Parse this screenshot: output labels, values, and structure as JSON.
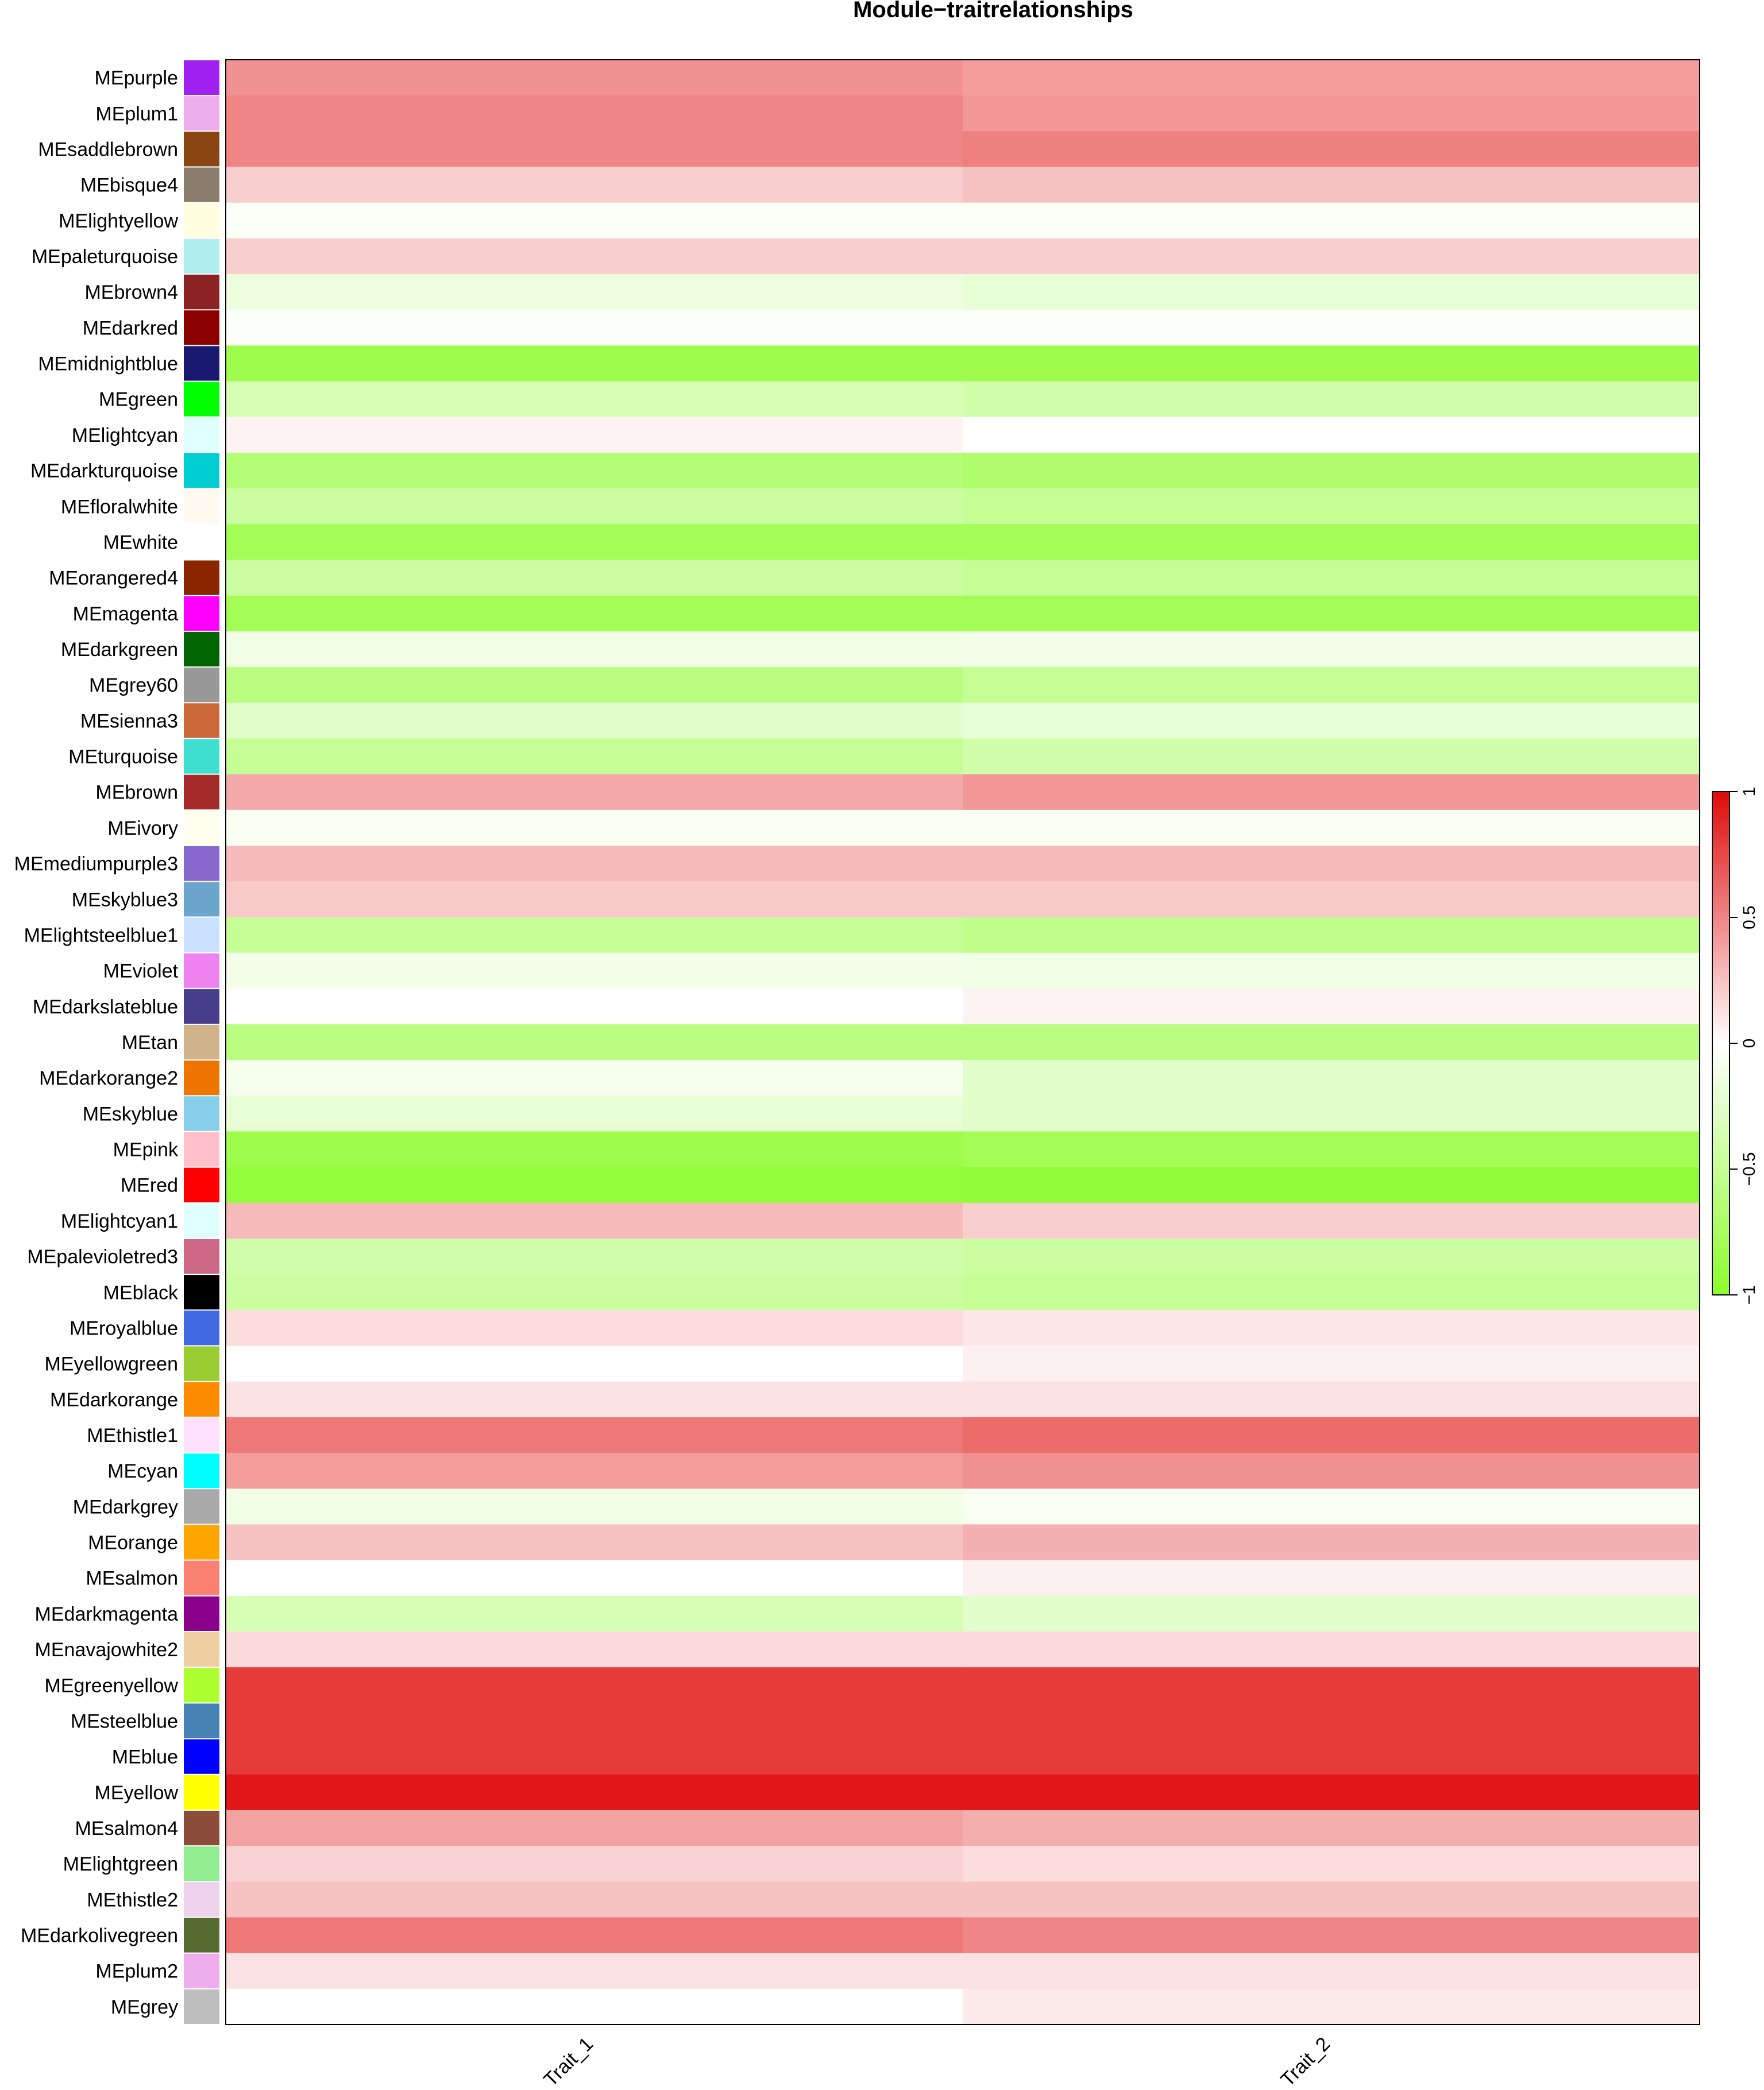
{
  "chart_data": {
    "type": "heatmap",
    "title": "Module−traitrelationships",
    "columns": [
      "Trait_1",
      "Trait_2"
    ],
    "rows": [
      {
        "label": "MEpurple",
        "color": "#a020f0",
        "values": [
          0.45,
          0.4
        ]
      },
      {
        "label": "MEplum1",
        "color": "#eeaeee",
        "values": [
          0.5,
          0.42
        ]
      },
      {
        "label": "MEsaddlebrown",
        "color": "#8b4513",
        "values": [
          0.5,
          0.52
        ]
      },
      {
        "label": "MEbisque4",
        "color": "#8b7d6b",
        "values": [
          0.2,
          0.25
        ]
      },
      {
        "label": "MElightyellow",
        "color": "#ffffe0",
        "values": [
          -0.04,
          -0.04
        ]
      },
      {
        "label": "MEpaleturquoise",
        "color": "#afeeee",
        "values": [
          0.2,
          0.2
        ]
      },
      {
        "label": "MEbrown4",
        "color": "#8b2323",
        "values": [
          -0.15,
          -0.2
        ]
      },
      {
        "label": "MEdarkred",
        "color": "#8b0000",
        "values": [
          -0.03,
          -0.03
        ]
      },
      {
        "label": "MEmidnightblue",
        "color": "#191970",
        "values": [
          -0.85,
          -0.85
        ]
      },
      {
        "label": "MEgreen",
        "color": "#00ff00",
        "values": [
          -0.35,
          -0.4
        ]
      },
      {
        "label": "MElightcyan",
        "color": "#e0ffff",
        "values": [
          0.05,
          0.0
        ]
      },
      {
        "label": "MEdarkturquoise",
        "color": "#00ced1",
        "values": [
          -0.65,
          -0.7
        ]
      },
      {
        "label": "MEfloralwhite",
        "color": "#fffaf0",
        "values": [
          -0.45,
          -0.5
        ]
      },
      {
        "label": "MEwhite",
        "color": "#ffffff",
        "values": [
          -0.8,
          -0.8
        ]
      },
      {
        "label": "MEorangered4",
        "color": "#8b2500",
        "values": [
          -0.45,
          -0.5
        ]
      },
      {
        "label": "MEmagenta",
        "color": "#ff00ff",
        "values": [
          -0.8,
          -0.8
        ]
      },
      {
        "label": "MEdarkgreen",
        "color": "#006400",
        "values": [
          -0.12,
          -0.1
        ]
      },
      {
        "label": "MEgrey60",
        "color": "#999999",
        "values": [
          -0.6,
          -0.5
        ]
      },
      {
        "label": "MEsienna3",
        "color": "#cd6839",
        "values": [
          -0.25,
          -0.2
        ]
      },
      {
        "label": "MEturquoise",
        "color": "#40e0d0",
        "values": [
          -0.5,
          -0.4
        ]
      },
      {
        "label": "MEbrown",
        "color": "#a52a2a",
        "values": [
          0.35,
          0.42
        ]
      },
      {
        "label": "MEivory",
        "color": "#fffff0",
        "values": [
          -0.06,
          -0.06
        ]
      },
      {
        "label": "MEmediumpurple3",
        "color": "#8968cd",
        "values": [
          0.28,
          0.28
        ]
      },
      {
        "label": "MEskyblue3",
        "color": "#6ca6cd",
        "values": [
          0.22,
          0.22
        ]
      },
      {
        "label": "MElightsteelblue1",
        "color": "#cae1ff",
        "values": [
          -0.5,
          -0.55
        ]
      },
      {
        "label": "MEviolet",
        "color": "#ee82ee",
        "values": [
          -0.1,
          -0.12
        ]
      },
      {
        "label": "MEdarkslateblue",
        "color": "#483d8b",
        "values": [
          0.0,
          0.05
        ]
      },
      {
        "label": "MEtan",
        "color": "#d2b48c",
        "values": [
          -0.6,
          -0.6
        ]
      },
      {
        "label": "MEdarkorange2",
        "color": "#ee7600",
        "values": [
          -0.08,
          -0.25
        ]
      },
      {
        "label": "MEskyblue",
        "color": "#87ceeb",
        "values": [
          -0.2,
          -0.25
        ]
      },
      {
        "label": "MEpink",
        "color": "#ffc0cb",
        "values": [
          -0.85,
          -0.8
        ]
      },
      {
        "label": "MEred",
        "color": "#ff0000",
        "values": [
          -0.92,
          -0.95
        ]
      },
      {
        "label": "MElightcyan1",
        "color": "#e0ffff",
        "values": [
          0.28,
          0.2
        ]
      },
      {
        "label": "MEpalevioletred3",
        "color": "#cd6889",
        "values": [
          -0.4,
          -0.45
        ]
      },
      {
        "label": "MEblack",
        "color": "#000000",
        "values": [
          -0.45,
          -0.5
        ]
      },
      {
        "label": "MEroyalblue",
        "color": "#4169e1",
        "values": [
          0.14,
          0.1
        ]
      },
      {
        "label": "MEyellowgreen",
        "color": "#9acd32",
        "values": [
          0.0,
          0.06
        ]
      },
      {
        "label": "MEdarkorange",
        "color": "#ff8c00",
        "values": [
          0.12,
          0.12
        ]
      },
      {
        "label": "MEthistle1",
        "color": "#ffe1ff",
        "values": [
          0.55,
          0.6
        ]
      },
      {
        "label": "MEcyan",
        "color": "#00ffff",
        "values": [
          0.4,
          0.45
        ]
      },
      {
        "label": "MEdarkgrey",
        "color": "#a9a9a9",
        "values": [
          -0.12,
          -0.06
        ]
      },
      {
        "label": "MEorange",
        "color": "#ffa500",
        "values": [
          0.25,
          0.32
        ]
      },
      {
        "label": "MEsalmon",
        "color": "#fa8072",
        "values": [
          0.0,
          0.06
        ]
      },
      {
        "label": "MEdarkmagenta",
        "color": "#8b008b",
        "values": [
          -0.35,
          -0.25
        ]
      },
      {
        "label": "MEnavajowhite2",
        "color": "#eecfa1",
        "values": [
          0.15,
          0.15
        ]
      },
      {
        "label": "MEgreenyellow",
        "color": "#adff2f",
        "values": [
          0.8,
          0.8
        ]
      },
      {
        "label": "MEsteelblue",
        "color": "#4682b4",
        "values": [
          0.8,
          0.8
        ]
      },
      {
        "label": "MEblue",
        "color": "#0000ff",
        "values": [
          0.8,
          0.8
        ]
      },
      {
        "label": "MEyellow",
        "color": "#ffff00",
        "values": [
          0.95,
          0.95
        ]
      },
      {
        "label": "MEsalmon4",
        "color": "#8b4c39",
        "values": [
          0.38,
          0.33
        ]
      },
      {
        "label": "MElightgreen",
        "color": "#90ee90",
        "values": [
          0.18,
          0.14
        ]
      },
      {
        "label": "MEthistle2",
        "color": "#eed2ee",
        "values": [
          0.25,
          0.25
        ]
      },
      {
        "label": "MEdarkolivegreen",
        "color": "#556b2f",
        "values": [
          0.55,
          0.5
        ]
      },
      {
        "label": "MEplum2",
        "color": "#eeaeee",
        "values": [
          0.12,
          0.12
        ]
      },
      {
        "label": "MEgrey",
        "color": "#bebebe",
        "values": [
          0.0,
          0.08
        ]
      }
    ],
    "colorbar": {
      "range": [
        -1,
        1
      ],
      "ticks": [
        "−1",
        "−0.5",
        "0",
        "0.5",
        "1"
      ],
      "tick_values": [
        -1,
        -0.5,
        0,
        0.5,
        1
      ],
      "low_color": "#8cfc2c",
      "mid_color": "#ffffff",
      "high_color": "#e00a0a"
    }
  }
}
